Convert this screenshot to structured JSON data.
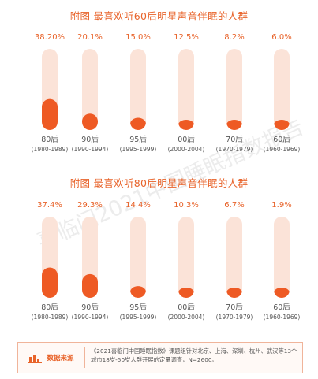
{
  "chart_data": [
    {
      "type": "bar",
      "title": "附图 最喜欢听60后明星声音伴眠的人群",
      "categories": [
        "80后",
        "90后",
        "95后",
        "00后",
        "70后",
        "60后"
      ],
      "ranges": [
        "(1980-1989)",
        "(1990-1994)",
        "(1995-1999)",
        "(2000-2004)",
        "(1970-1979)",
        "(1960-1969)"
      ],
      "values": [
        38.2,
        20.1,
        15.0,
        12.5,
        8.2,
        6.0
      ],
      "labels": [
        "38.20%",
        "20.1%",
        "15.0%",
        "12.5%",
        "8.2%",
        "6.0%"
      ],
      "ylim": [
        0,
        100
      ]
    },
    {
      "type": "bar",
      "title": "附图 最喜欢听80后明星声音伴眠的人群",
      "categories": [
        "80后",
        "90后",
        "95后",
        "00后",
        "70后",
        "60后"
      ],
      "ranges": [
        "(1980-1989)",
        "(1990-1994)",
        "(1995-1999)",
        "(2000-2004)",
        "(1970-1979)",
        "(1960-1969)"
      ],
      "values": [
        37.4,
        29.3,
        14.4,
        10.3,
        6.7,
        1.9
      ],
      "labels": [
        "37.4%",
        "29.3%",
        "14.4%",
        "10.3%",
        "6.7%",
        "1.9%"
      ],
      "ylim": [
        0,
        100
      ]
    }
  ],
  "watermark": "喜临门2021中国睡眠指数报告",
  "source": {
    "icon": "bar-chart-icon",
    "label": "数据来源",
    "text": "《2021喜临门中国睡眠指数》课题组针对北京、上海、深圳、杭州、武汉等13个城市18岁-50岁人群开展的定量调查，N=2600。"
  },
  "colors": {
    "accent": "#e8632a",
    "track": "#fbe3d8",
    "fill": "#ee5a24",
    "text": "#555555"
  }
}
